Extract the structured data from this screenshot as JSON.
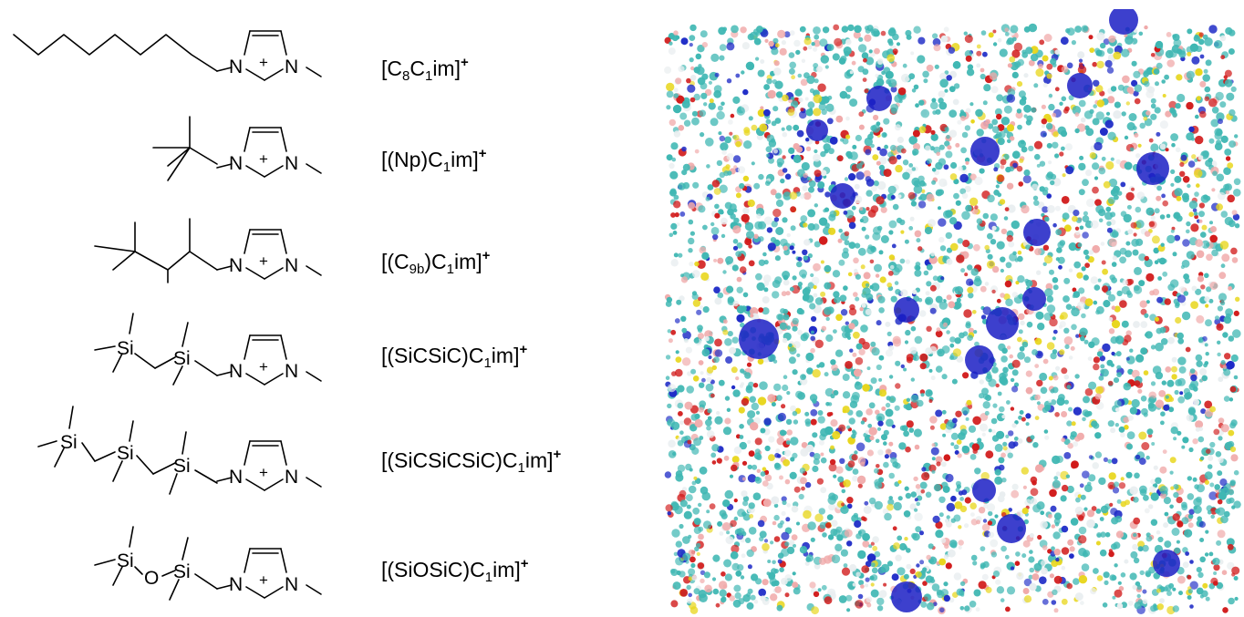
{
  "atoms": {
    "N": "N",
    "Si": "Si",
    "O": "O",
    "plus": "+"
  },
  "cations": [
    {
      "id": "c8c1im",
      "prefix": "[C",
      "parts": [
        [
          "8",
          "sub"
        ],
        [
          "C",
          ""
        ],
        [
          "1",
          "sub"
        ],
        [
          "im]",
          ""
        ]
      ],
      "charge": "+"
    },
    {
      "id": "npc1im",
      "parts": [
        [
          "[(Np)C",
          ""
        ],
        [
          "1",
          "sub"
        ],
        [
          "im]",
          ""
        ]
      ],
      "charge": "+"
    },
    {
      "id": "c9bc1im",
      "parts": [
        [
          "[(C",
          ""
        ],
        [
          "9b",
          "sub"
        ],
        [
          ")C",
          ""
        ],
        [
          "1",
          "sub"
        ],
        [
          "im]",
          ""
        ]
      ],
      "charge": "+"
    },
    {
      "id": "sicsicc1im",
      "parts": [
        [
          "[(SiCSiC)C",
          ""
        ],
        [
          "1",
          "sub"
        ],
        [
          "im]",
          ""
        ]
      ],
      "charge": "+"
    },
    {
      "id": "sicsicsicc1im",
      "parts": [
        [
          "[(SiCSiCSiC)C",
          ""
        ],
        [
          "1",
          "sub"
        ],
        [
          "im]",
          ""
        ]
      ],
      "charge": "+"
    },
    {
      "id": "siosicc1im",
      "parts": [
        [
          "[(SiOSiC)C",
          ""
        ],
        [
          "1",
          "sub"
        ],
        [
          "im]",
          ""
        ]
      ],
      "charge": "+"
    }
  ],
  "colors": {
    "cyan": "#3fb7b3",
    "red": "#d11a1a",
    "yellow": "#e8d61c",
    "blue": "#1f2cc7",
    "pink": "#f0a9a9",
    "white": "#e9eef0",
    "big_blue": "#1b1fc4"
  }
}
